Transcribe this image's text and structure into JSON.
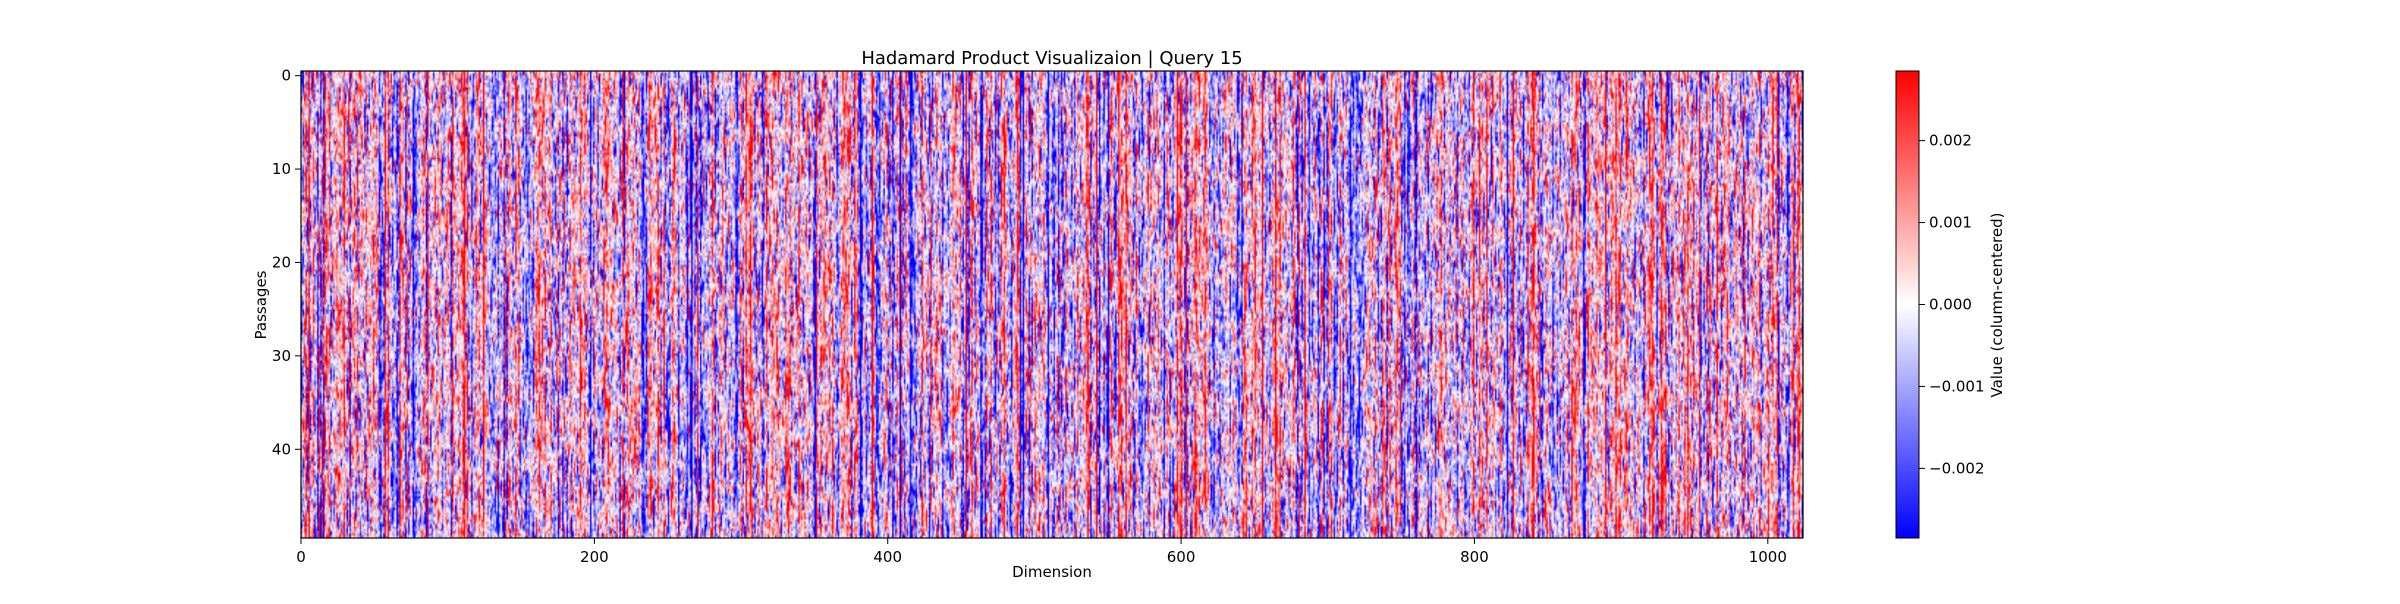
{
  "chart_data": {
    "type": "heatmap",
    "title": "Hadamard Product Visualizaion | Query 15",
    "xlabel": "Dimension",
    "ylabel": "Passages",
    "colorbar_label": "Value (column-centered)",
    "colormap": "bwr",
    "colors": {
      "low": "#0000ff",
      "mid": "#ffffff",
      "high": "#ff0000"
    },
    "n_cols": 1024,
    "n_rows": 50,
    "xlim": [
      0,
      1024
    ],
    "ylim": [
      50,
      0
    ],
    "clim": [
      -0.00285,
      0.00285
    ],
    "xticks": [
      {
        "value": 0,
        "label": "0"
      },
      {
        "value": 200,
        "label": "200"
      },
      {
        "value": 400,
        "label": "400"
      },
      {
        "value": 600,
        "label": "600"
      },
      {
        "value": 800,
        "label": "800"
      },
      {
        "value": 1000,
        "label": "1000"
      }
    ],
    "yticks": [
      {
        "value": 0,
        "label": "0"
      },
      {
        "value": 10,
        "label": "10"
      },
      {
        "value": 20,
        "label": "20"
      },
      {
        "value": 30,
        "label": "30"
      },
      {
        "value": 40,
        "label": "40"
      }
    ],
    "colorbar_ticks": [
      {
        "value": 0.002,
        "label": "0.002"
      },
      {
        "value": 0.001,
        "label": "0.001"
      },
      {
        "value": 0.0,
        "label": "0.000"
      },
      {
        "value": -0.001,
        "label": "−0.001"
      },
      {
        "value": -0.002,
        "label": "−0.002"
      }
    ]
  }
}
